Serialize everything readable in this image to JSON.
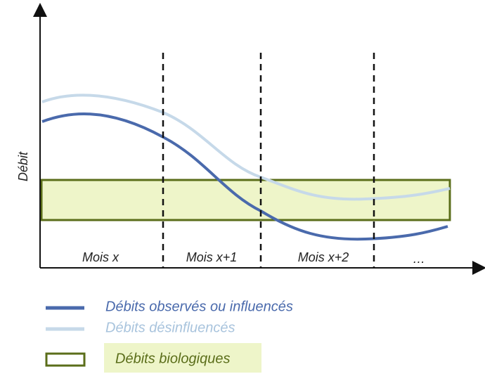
{
  "y_axis_label": "Débit",
  "periods": [
    "Mois x",
    "Mois x+1",
    "Mois x+2",
    "…"
  ],
  "legend": {
    "observed": "Débits observés ou influencés",
    "natural": "Débits désinfluencés",
    "biological": "Débits biologiques"
  }
}
